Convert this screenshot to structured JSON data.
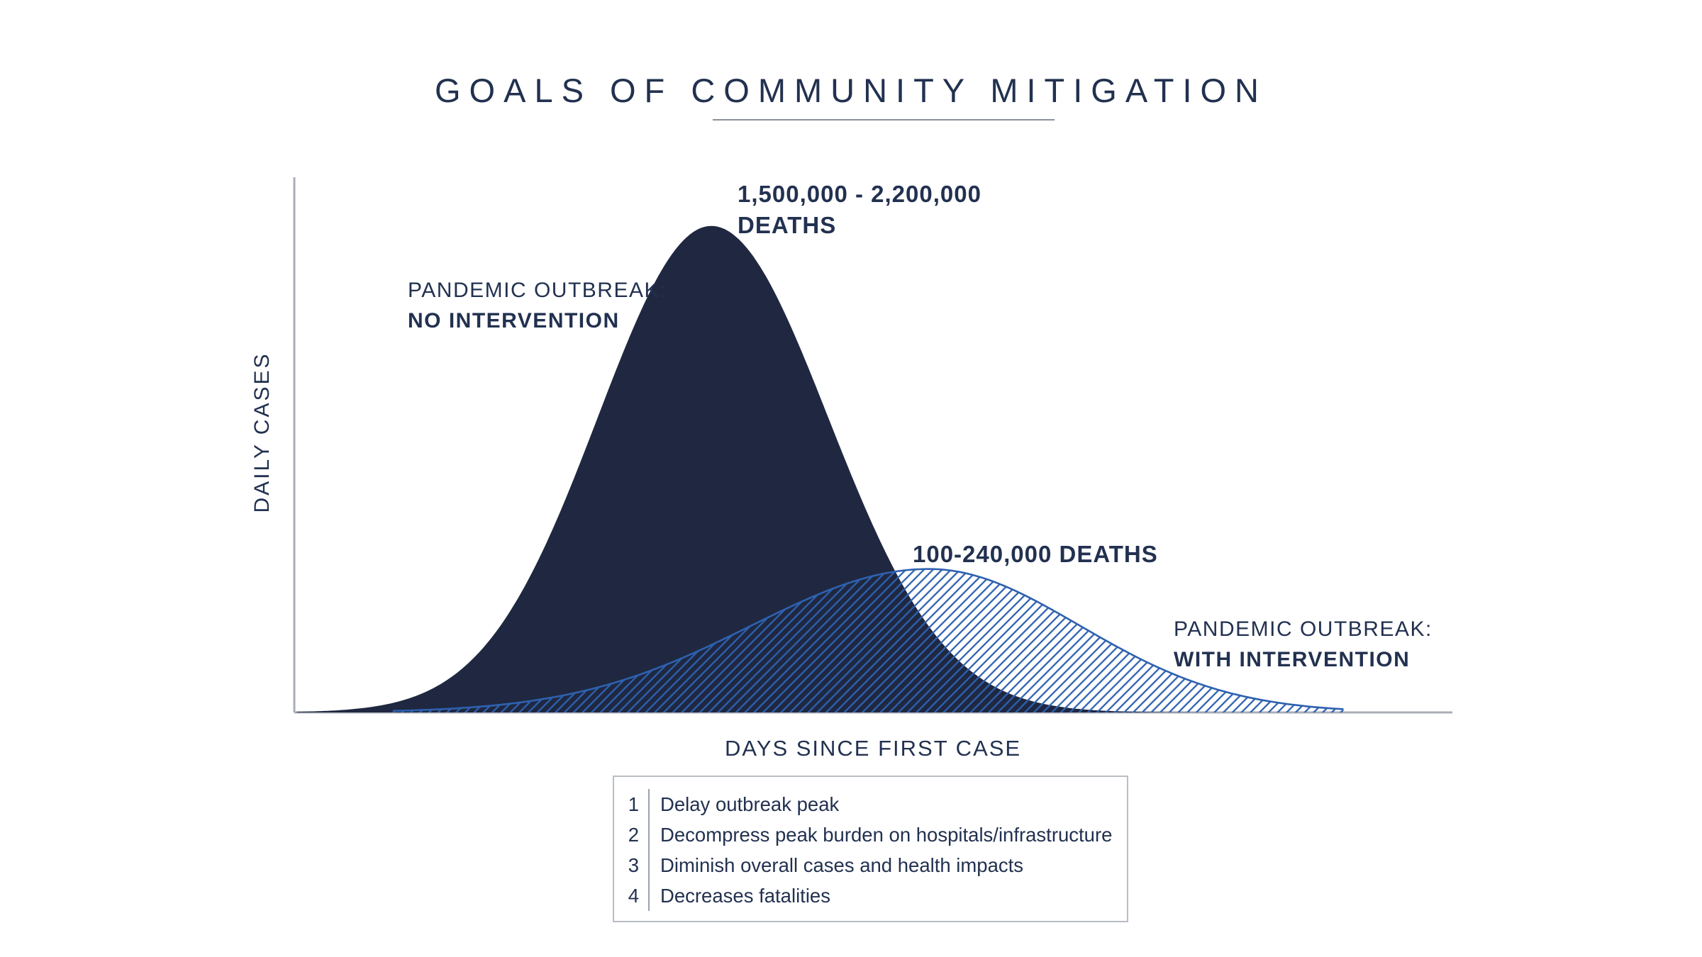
{
  "colors": {
    "ink": "#223150",
    "curve_dark": "#1f2840",
    "curve_blue": "#2e61b0",
    "axis": "#a9aeb7",
    "underline": "#8a919b",
    "box_border": "#b9bdc5",
    "divider": "#9aa2ad"
  },
  "chart_data": {
    "type": "area",
    "title": "GOALS OF COMMUNITY MITIGATION",
    "xlabel": "DAYS SINCE FIRST CASE",
    "ylabel": "DAILY CASES",
    "x_axis": {
      "label": "DAYS SINCE FIRST CASE",
      "ticks": []
    },
    "y_axis": {
      "label": "DAILY CASES",
      "ticks": []
    },
    "legend_position": "inline-annotations",
    "grid": false,
    "series": [
      {
        "name": "Pandemic outbreak: no intervention",
        "label_line1": "PANDEMIC OUTBREAK:",
        "label_line2": "NO INTERVENTION",
        "deaths_annotation_line1": "1,500,000 - 2,200,000",
        "deaths_annotation_line2": "DEATHS",
        "style": "solid",
        "fill": "#1f2840",
        "peak_x_frac": 0.36,
        "peak_height_frac": 0.909,
        "sigma_left_frac": 0.098,
        "sigma_right_frac": 0.101,
        "x_start_frac": 0.002,
        "x_end_frac": 0.79
      },
      {
        "name": "Pandemic outbreak: with intervention",
        "label_line1": "PANDEMIC OUTBREAK:",
        "label_line2": "WITH INTERVENTION",
        "deaths_annotation": "100-240,000 DEATHS",
        "style": "hatched",
        "stroke": "#2e61b0",
        "peak_x_frac": 0.548,
        "peak_height_frac": 0.268,
        "sigma_left_frac": 0.153,
        "sigma_right_frac": 0.13,
        "x_start_frac": 0.085,
        "x_end_frac": 0.906
      }
    ]
  },
  "goals": {
    "items": [
      {
        "num": "1",
        "text": "Delay outbreak peak"
      },
      {
        "num": "2",
        "text": "Decompress peak burden on hospitals/infrastructure"
      },
      {
        "num": "3",
        "text": "Diminish overall cases and health impacts"
      },
      {
        "num": "4",
        "text": "Decreases fatalities"
      }
    ]
  }
}
